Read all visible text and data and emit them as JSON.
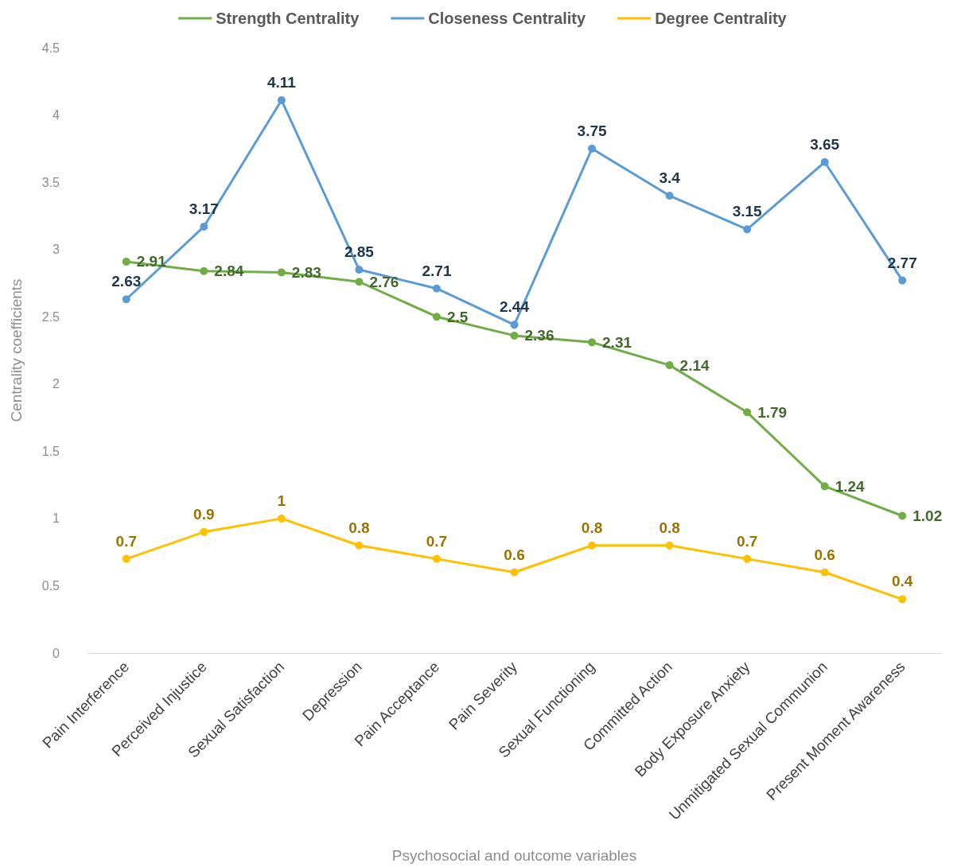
{
  "chart_data": {
    "type": "line",
    "xlabel": "Psychosocial and outcome variables",
    "ylabel": "Centrality coefficients",
    "categories": [
      "Pain Interference",
      "Perceived Injustice",
      "Sexual Satisfaction",
      "Depression",
      "Pain Acceptance",
      "Pain Severity",
      "Sexual Functioning",
      "Committed Action",
      "Body Exposure Anxiety",
      "Unmitigated Sexual Communion",
      "Present Moment Awareness"
    ],
    "series": [
      {
        "name": "Strength Centrality",
        "color": "#70ad47",
        "values": [
          2.91,
          2.84,
          2.83,
          2.76,
          2.5,
          2.36,
          2.31,
          2.14,
          1.79,
          1.24,
          1.02
        ]
      },
      {
        "name": "Closeness Centrality",
        "color": "#5b9bd5",
        "values": [
          2.63,
          3.17,
          4.11,
          2.85,
          2.71,
          2.44,
          3.75,
          3.4,
          3.15,
          3.65,
          2.77
        ]
      },
      {
        "name": "Degree Centrality",
        "color": "#ffc000",
        "values": [
          0.7,
          0.9,
          1,
          0.8,
          0.7,
          0.6,
          0.8,
          0.8,
          0.7,
          0.6,
          0.4
        ]
      }
    ],
    "ylim": [
      0,
      4.5
    ],
    "yticks": [
      0,
      0.5,
      1,
      1.5,
      2,
      2.5,
      3,
      3.5,
      4,
      4.5
    ],
    "data_labels": true,
    "grid": false,
    "legend": "top",
    "marker": "circle",
    "line_style": "solid"
  }
}
